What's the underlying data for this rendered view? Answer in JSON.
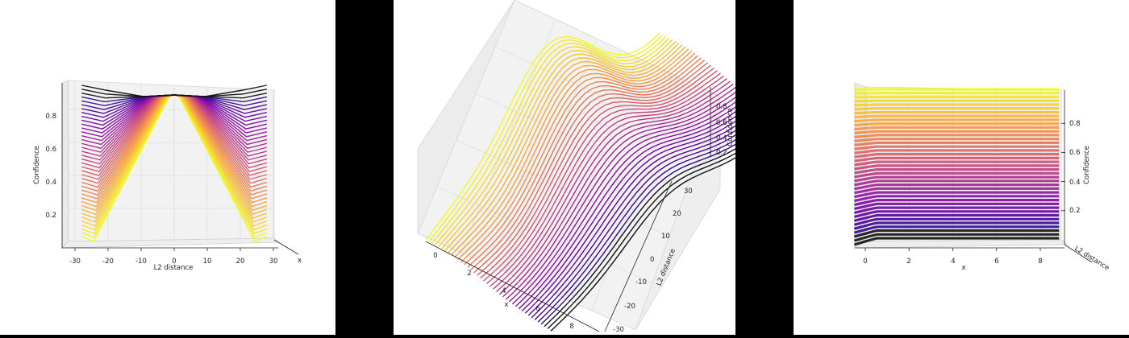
{
  "figure": {
    "colors": {
      "background": "#000000",
      "panel": "#ffffff",
      "pane": "#f2f2f2",
      "grid": "#d8d8d8",
      "colormap": "plasma"
    }
  },
  "chart_data": [
    {
      "type": "line",
      "view": "front (x axis into the screen)",
      "xlabel": "L2 distance",
      "ylabel": "Confidence",
      "zlabel": "x",
      "xticks": [
        "-30",
        "-20",
        "-10",
        "0",
        "10",
        "20",
        "30"
      ],
      "yticks": [
        "0.2",
        "0.4",
        "0.6",
        "0.8"
      ],
      "x_range": [
        -33,
        33
      ],
      "y_range": [
        0,
        0.95
      ],
      "x_depth_range": [
        0,
        9
      ],
      "n_series": 40,
      "series_shape": "triangular peak at L2 distance 0; confidence ~0.93 at the peak, falling to ~0.05 near |L2 distance| = 25",
      "grid": true
    },
    {
      "type": "line",
      "view": "oblique 3D",
      "xlabel": "x",
      "ylabel": "L2 distance",
      "zlabel": "Confidence",
      "xticks": [
        "0",
        "2",
        "4",
        "6",
        "8"
      ],
      "yticks": [
        "-30",
        "-20",
        "-10",
        "0",
        "10",
        "20",
        "30"
      ],
      "zticks": [
        "0.2",
        "0.4",
        "0.6",
        "0.8"
      ],
      "x_range": [
        0,
        9
      ],
      "y_range": [
        -33,
        33
      ],
      "z_range": [
        0,
        0.95
      ],
      "n_series": 40,
      "grid": true
    },
    {
      "type": "line",
      "view": "side (L2 distance axis into the screen)",
      "xlabel": "x",
      "ylabel": "Confidence",
      "zlabel": "L2 distance",
      "xticks": [
        "0",
        "2",
        "4",
        "6",
        "8"
      ],
      "yticks": [
        "0.2",
        "0.4",
        "0.6",
        "0.8"
      ],
      "x_range": [
        -0.5,
        9
      ],
      "y_range": [
        0,
        0.95
      ],
      "n_series": 40,
      "series_shape": "each curve rises over x from 0 to ~0.5, then stays nearly flat out to x = 9",
      "grid": true
    }
  ]
}
